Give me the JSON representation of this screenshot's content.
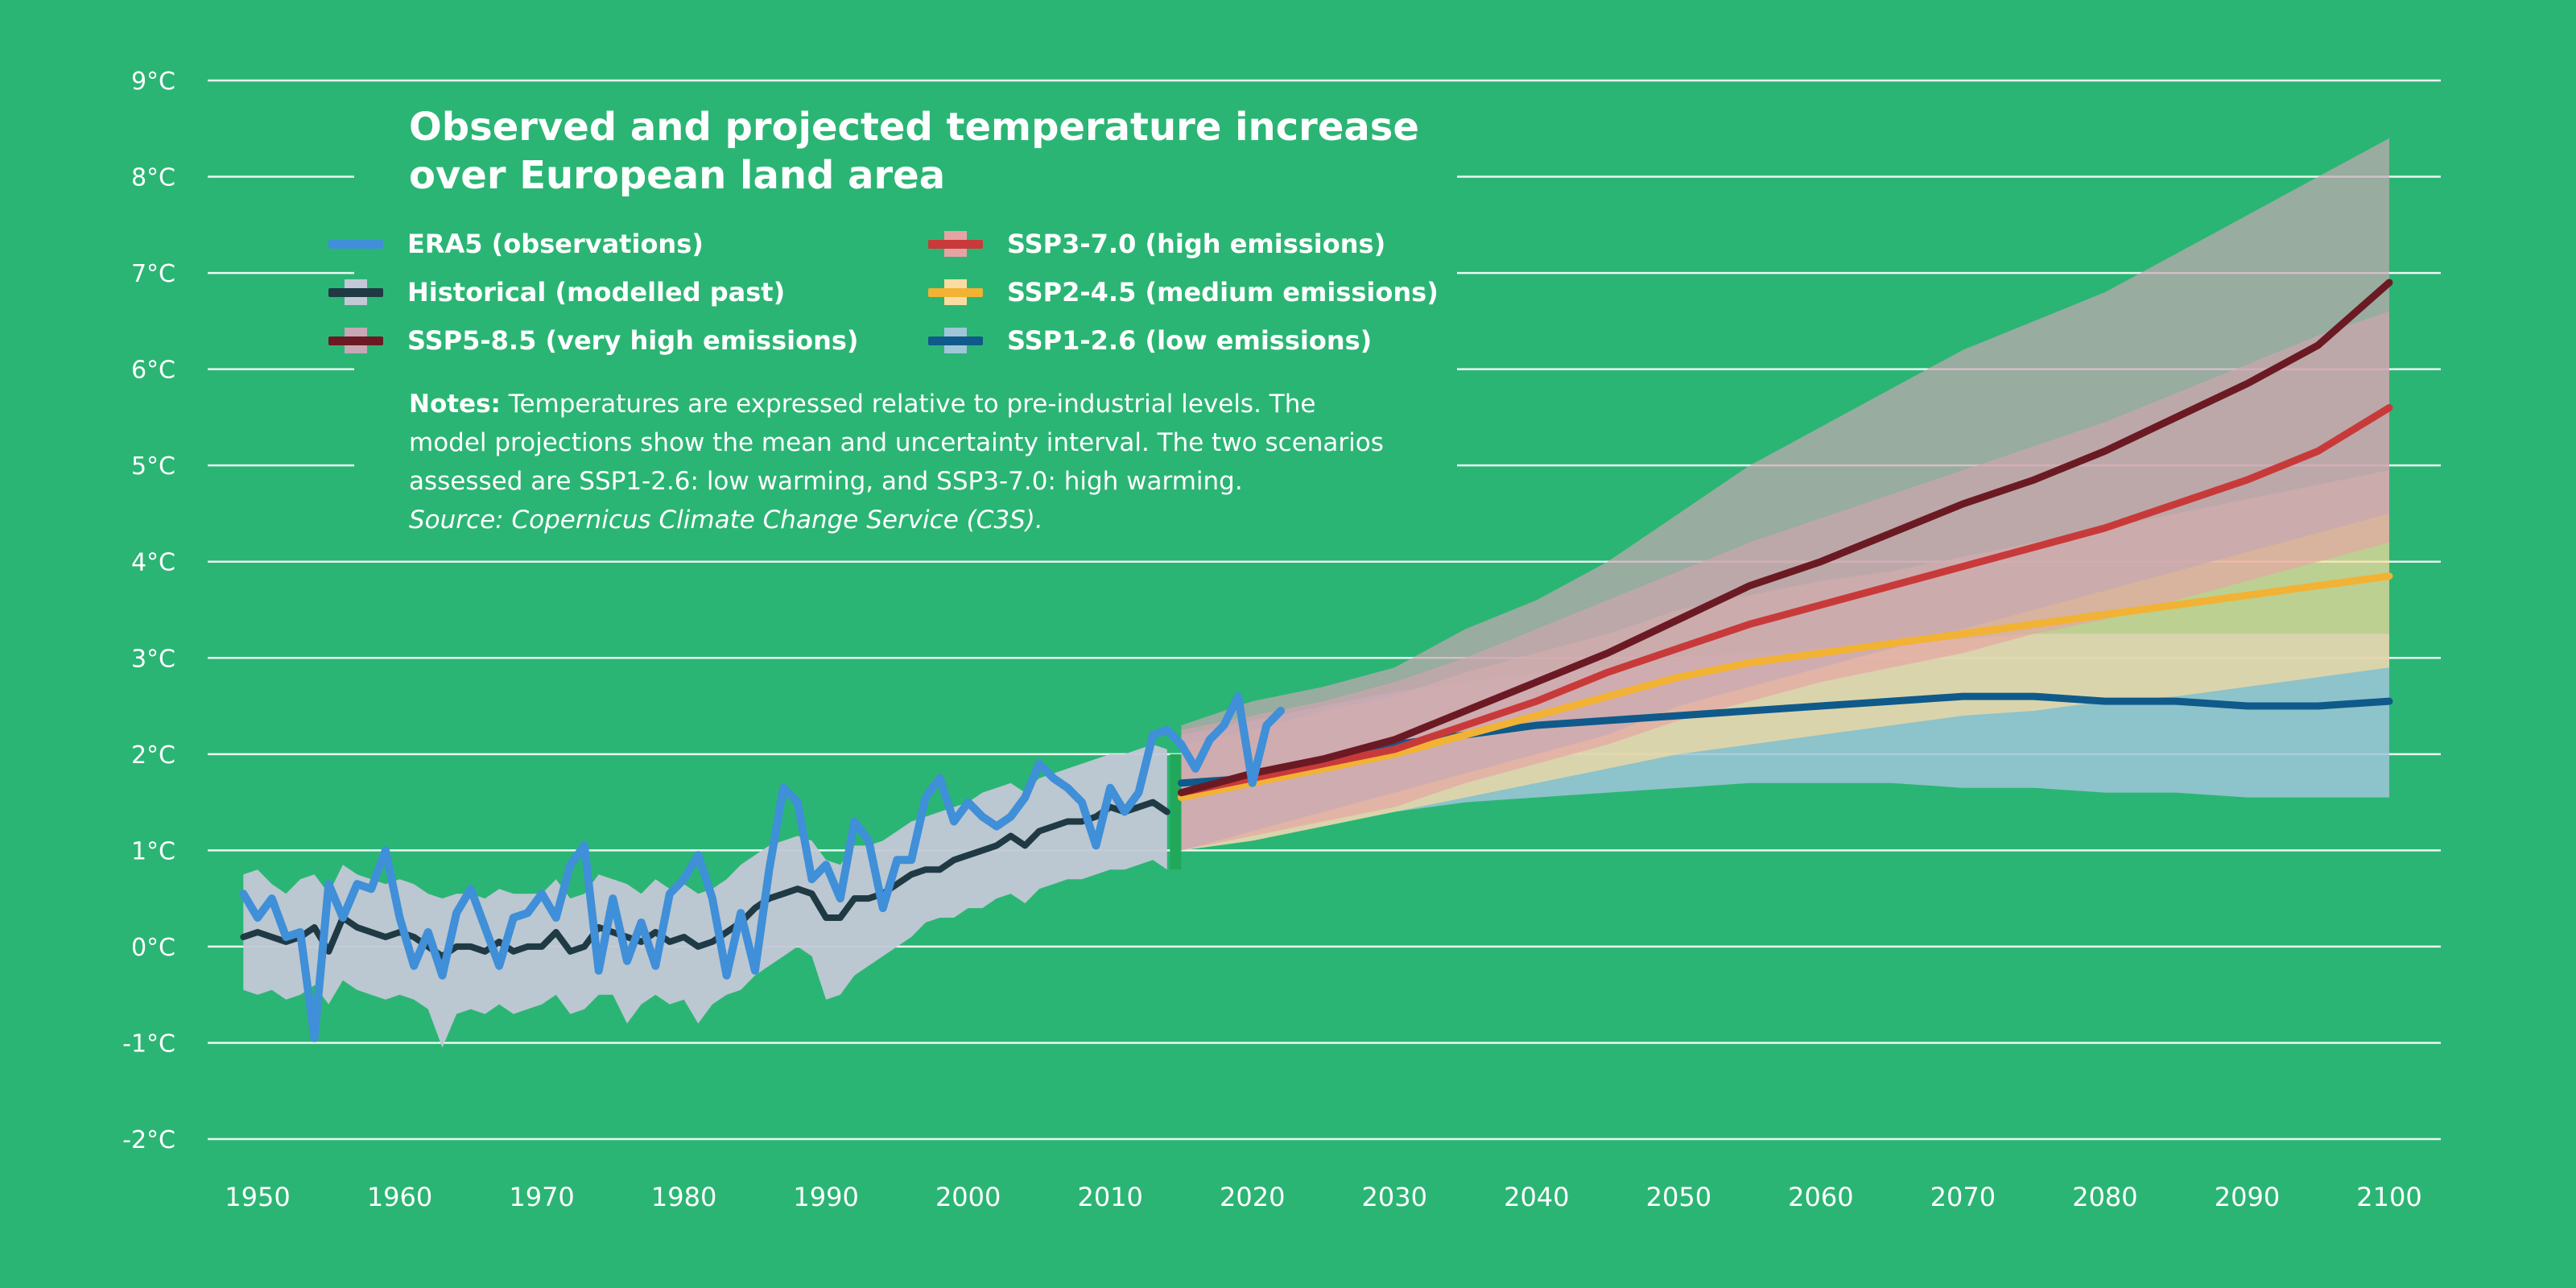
{
  "title": "Observed and projected temperature increase over European land area",
  "title_lines": [
    "Observed and projected temperature increase",
    "over European land area"
  ],
  "notes": {
    "label": "Notes:",
    "text_line1": " Temperatures are expressed relative to pre-industrial levels. The",
    "text_line2": "model projections show the mean and uncertainty interval. The two scenarios",
    "text_line3": "assessed are SSP1-2.6: low warming, and SSP3-7.0: high warming.",
    "source": "Source: Copernicus Climate Change Service (C3S)."
  },
  "legend": [
    {
      "label": "ERA5 (observations)",
      "line_color": "#3f8fd9",
      "band_color": null
    },
    {
      "label": "Historical (modelled past)",
      "line_color": "#1f3a44",
      "band_color": "#c3c8d6"
    },
    {
      "label": "SSP5-8.5 (very high emissions)",
      "line_color": "#6b1a24",
      "band_color": "#c7a8b4"
    },
    {
      "label": "SSP3-7.0 (high emissions)",
      "line_color": "#c83a3a",
      "band_color": "#e6a3a3"
    },
    {
      "label": "SSP2-4.5 (medium emissions)",
      "line_color": "#f2b233",
      "band_color": "#fbdca0"
    },
    {
      "label": "SSP1-2.6 (low emissions)",
      "line_color": "#0f5a8a",
      "band_color": "#9fc6d9"
    }
  ],
  "colors": {
    "background": "#2bb574",
    "grid": "#ffffff",
    "era5": "#3f8fd9",
    "historical_line": "#1f3a44",
    "historical_band": "#c3c8d6",
    "ssp585_line": "#6b1a24",
    "ssp585_band": "#c7a8b4",
    "ssp370_line": "#c83a3a",
    "ssp370_band": "#e6a3a3",
    "ssp245_line": "#f2b233",
    "ssp245_band": "#fbdca0",
    "ssp126_line": "#0f5a8a",
    "ssp126_band": "#9fc6d9",
    "divider": "#22a85a"
  },
  "chart_data": {
    "type": "line",
    "title": "Observed and projected temperature increase over European land area",
    "xlabel": "",
    "ylabel": "",
    "xlim": [
      1948,
      2102
    ],
    "ylim": [
      -2,
      9
    ],
    "x_ticks": [
      1950,
      1960,
      1970,
      1980,
      1990,
      2000,
      2010,
      2020,
      2030,
      2040,
      2050,
      2060,
      2070,
      2080,
      2090,
      2100
    ],
    "y_ticks": [
      -2,
      -1,
      0,
      1,
      2,
      3,
      4,
      5,
      6,
      7,
      8,
      9
    ],
    "y_tick_labels": [
      "-2°C",
      "-1°C",
      "0°C",
      "1°C",
      "2°C",
      "3°C",
      "4°C",
      "5°C",
      "6°C",
      "7°C",
      "8°C",
      "9°C"
    ],
    "grid": true,
    "legend_position": "top-left",
    "series": [
      {
        "name": "ERA5 (observations)",
        "kind": "line",
        "x": [
          1949,
          1950,
          1951,
          1952,
          1953,
          1954,
          1955,
          1956,
          1957,
          1958,
          1959,
          1960,
          1961,
          1962,
          1963,
          1964,
          1965,
          1966,
          1967,
          1968,
          1969,
          1970,
          1971,
          1972,
          1973,
          1974,
          1975,
          1976,
          1977,
          1978,
          1979,
          1980,
          1981,
          1982,
          1983,
          1984,
          1985,
          1986,
          1987,
          1988,
          1989,
          1990,
          1991,
          1992,
          1993,
          1994,
          1995,
          1996,
          1997,
          1998,
          1999,
          2000,
          2001,
          2002,
          2003,
          2004,
          2005,
          2006,
          2007,
          2008,
          2009,
          2010,
          2011,
          2012,
          2013,
          2014,
          2015,
          2016,
          2017,
          2018,
          2019,
          2020,
          2021,
          2022
        ],
        "y": [
          0.55,
          0.3,
          0.5,
          0.1,
          0.15,
          -0.95,
          0.65,
          0.3,
          0.65,
          0.6,
          1.0,
          0.3,
          -0.2,
          0.15,
          -0.3,
          0.35,
          0.6,
          0.2,
          -0.2,
          0.3,
          0.35,
          0.55,
          0.3,
          0.85,
          1.05,
          -0.25,
          0.5,
          -0.15,
          0.25,
          -0.2,
          0.55,
          0.7,
          0.95,
          0.5,
          -0.3,
          0.35,
          -0.25,
          0.8,
          1.65,
          1.5,
          0.7,
          0.85,
          0.5,
          1.3,
          1.1,
          0.4,
          0.9,
          0.9,
          1.55,
          1.75,
          1.3,
          1.5,
          1.35,
          1.25,
          1.35,
          1.55,
          1.9,
          1.75,
          1.65,
          1.5,
          1.05,
          1.65,
          1.4,
          1.6,
          2.2,
          2.25,
          2.1,
          1.85,
          2.15,
          2.3,
          2.6,
          1.7,
          2.3,
          2.45
        ]
      },
      {
        "name": "Historical (modelled past)",
        "kind": "line_band",
        "x": [
          1949,
          1950,
          1951,
          1952,
          1953,
          1954,
          1955,
          1956,
          1957,
          1958,
          1959,
          1960,
          1961,
          1962,
          1963,
          1964,
          1965,
          1966,
          1967,
          1968,
          1969,
          1970,
          1971,
          1972,
          1973,
          1974,
          1975,
          1976,
          1977,
          1978,
          1979,
          1980,
          1981,
          1982,
          1983,
          1984,
          1985,
          1986,
          1987,
          1988,
          1989,
          1990,
          1991,
          1992,
          1993,
          1994,
          1995,
          1996,
          1997,
          1998,
          1999,
          2000,
          2001,
          2002,
          2003,
          2004,
          2005,
          2006,
          2007,
          2008,
          2009,
          2010,
          2011,
          2012,
          2013,
          2014
        ],
        "y": [
          0.1,
          0.15,
          0.1,
          0.05,
          0.1,
          0.2,
          -0.05,
          0.3,
          0.2,
          0.15,
          0.1,
          0.15,
          0.1,
          0.0,
          -0.1,
          0.0,
          0.0,
          -0.05,
          0.05,
          -0.05,
          0.0,
          0.0,
          0.15,
          -0.05,
          0.0,
          0.2,
          0.15,
          0.1,
          0.05,
          0.15,
          0.05,
          0.1,
          0.0,
          0.05,
          0.15,
          0.25,
          0.4,
          0.5,
          0.55,
          0.6,
          0.55,
          0.3,
          0.3,
          0.5,
          0.5,
          0.55,
          0.65,
          0.75,
          0.8,
          0.8,
          0.9,
          0.95,
          1.0,
          1.05,
          1.15,
          1.05,
          1.2,
          1.25,
          1.3,
          1.3,
          1.35,
          1.45,
          1.4,
          1.45,
          1.5,
          1.4
        ],
        "lower": [
          -0.45,
          -0.5,
          -0.45,
          -0.55,
          -0.5,
          -0.4,
          -0.6,
          -0.35,
          -0.45,
          -0.5,
          -0.55,
          -0.5,
          -0.55,
          -0.65,
          -1.05,
          -0.7,
          -0.65,
          -0.7,
          -0.6,
          -0.7,
          -0.65,
          -0.6,
          -0.5,
          -0.7,
          -0.65,
          -0.5,
          -0.5,
          -0.8,
          -0.6,
          -0.5,
          -0.6,
          -0.55,
          -0.8,
          -0.6,
          -0.5,
          -0.45,
          -0.3,
          -0.2,
          -0.1,
          0.0,
          -0.1,
          -0.55,
          -0.5,
          -0.3,
          -0.2,
          -0.1,
          0.0,
          0.1,
          0.25,
          0.3,
          0.3,
          0.4,
          0.4,
          0.5,
          0.55,
          0.45,
          0.6,
          0.65,
          0.7,
          0.7,
          0.75,
          0.8,
          0.8,
          0.85,
          0.9,
          0.8
        ],
        "upper": [
          0.75,
          0.8,
          0.65,
          0.55,
          0.7,
          0.75,
          0.55,
          0.85,
          0.75,
          0.7,
          0.65,
          0.7,
          0.65,
          0.55,
          0.5,
          0.55,
          0.55,
          0.5,
          0.6,
          0.55,
          0.55,
          0.55,
          0.7,
          0.5,
          0.55,
          0.75,
          0.7,
          0.65,
          0.55,
          0.7,
          0.6,
          0.65,
          0.55,
          0.6,
          0.7,
          0.85,
          0.95,
          1.05,
          1.1,
          1.15,
          1.1,
          0.9,
          0.85,
          1.05,
          1.05,
          1.1,
          1.2,
          1.3,
          1.35,
          1.4,
          1.45,
          1.5,
          1.6,
          1.65,
          1.7,
          1.6,
          1.75,
          1.8,
          1.85,
          1.9,
          1.95,
          2.0,
          2.0,
          2.05,
          2.1,
          2.05
        ]
      },
      {
        "name": "SSP5-8.5 (very high emissions)",
        "kind": "line_band",
        "x": [
          2015,
          2020,
          2025,
          2030,
          2035,
          2040,
          2045,
          2050,
          2055,
          2060,
          2065,
          2070,
          2075,
          2080,
          2085,
          2090,
          2095,
          2100
        ],
        "y": [
          1.6,
          1.8,
          1.95,
          2.15,
          2.45,
          2.75,
          3.05,
          3.4,
          3.75,
          4.0,
          4.3,
          4.6,
          4.85,
          5.15,
          5.5,
          5.85,
          6.25,
          6.9
        ],
        "lower": [
          1.0,
          1.2,
          1.4,
          1.6,
          1.8,
          2.0,
          2.2,
          2.5,
          2.7,
          2.9,
          3.1,
          3.3,
          3.5,
          3.7,
          3.9,
          4.1,
          4.3,
          4.5
        ],
        "upper": [
          2.3,
          2.55,
          2.7,
          2.9,
          3.3,
          3.6,
          4.0,
          4.5,
          5.0,
          5.4,
          5.8,
          6.2,
          6.5,
          6.8,
          7.2,
          7.6,
          8.0,
          8.4
        ]
      },
      {
        "name": "SSP3-7.0 (high emissions)",
        "kind": "line_band",
        "x": [
          2015,
          2020,
          2025,
          2030,
          2035,
          2040,
          2045,
          2050,
          2055,
          2060,
          2065,
          2070,
          2075,
          2080,
          2085,
          2090,
          2095,
          2100
        ],
        "y": [
          1.6,
          1.75,
          1.9,
          2.05,
          2.3,
          2.55,
          2.85,
          3.1,
          3.35,
          3.55,
          3.75,
          3.95,
          4.15,
          4.35,
          4.6,
          4.85,
          5.15,
          5.6
        ],
        "lower": [
          1.0,
          1.15,
          1.3,
          1.45,
          1.7,
          1.9,
          2.1,
          2.35,
          2.55,
          2.75,
          2.9,
          3.05,
          3.25,
          3.4,
          3.6,
          3.8,
          4.0,
          4.2
        ],
        "upper": [
          2.25,
          2.4,
          2.55,
          2.75,
          3.0,
          3.3,
          3.6,
          3.9,
          4.2,
          4.45,
          4.7,
          4.95,
          5.2,
          5.45,
          5.75,
          6.05,
          6.35,
          6.6
        ]
      },
      {
        "name": "SSP2-4.5 (medium emissions)",
        "kind": "line_band",
        "x": [
          2015,
          2020,
          2025,
          2030,
          2035,
          2040,
          2045,
          2050,
          2055,
          2060,
          2065,
          2070,
          2075,
          2080,
          2085,
          2090,
          2095,
          2100
        ],
        "y": [
          1.55,
          1.7,
          1.85,
          2.0,
          2.2,
          2.4,
          2.6,
          2.8,
          2.95,
          3.05,
          3.15,
          3.25,
          3.35,
          3.45,
          3.55,
          3.65,
          3.75,
          3.85
        ],
        "lower": [
          1.0,
          1.1,
          1.25,
          1.4,
          1.55,
          1.7,
          1.85,
          2.0,
          2.1,
          2.2,
          2.3,
          2.4,
          2.45,
          2.55,
          2.6,
          2.7,
          2.8,
          2.9
        ],
        "upper": [
          2.1,
          2.25,
          2.45,
          2.6,
          2.85,
          3.05,
          3.25,
          3.5,
          3.65,
          3.8,
          3.9,
          4.05,
          4.2,
          4.35,
          4.5,
          4.65,
          4.8,
          4.95
        ]
      },
      {
        "name": "SSP1-2.6 (low emissions)",
        "kind": "line_band",
        "x": [
          2015,
          2020,
          2025,
          2030,
          2035,
          2040,
          2045,
          2050,
          2055,
          2060,
          2065,
          2070,
          2075,
          2080,
          2085,
          2090,
          2095,
          2100
        ],
        "y": [
          1.7,
          1.75,
          1.9,
          2.1,
          2.2,
          2.3,
          2.35,
          2.4,
          2.45,
          2.5,
          2.55,
          2.6,
          2.6,
          2.55,
          2.55,
          2.5,
          2.5,
          2.55
        ],
        "lower": [
          1.0,
          1.1,
          1.25,
          1.4,
          1.5,
          1.55,
          1.6,
          1.65,
          1.7,
          1.7,
          1.7,
          1.65,
          1.65,
          1.6,
          1.6,
          1.55,
          1.55,
          1.55
        ],
        "upper": [
          2.2,
          2.35,
          2.5,
          2.65,
          2.75,
          2.85,
          2.9,
          3.0,
          3.05,
          3.1,
          3.15,
          3.2,
          3.25,
          3.25,
          3.25,
          3.25,
          3.25,
          3.25
        ]
      }
    ]
  }
}
